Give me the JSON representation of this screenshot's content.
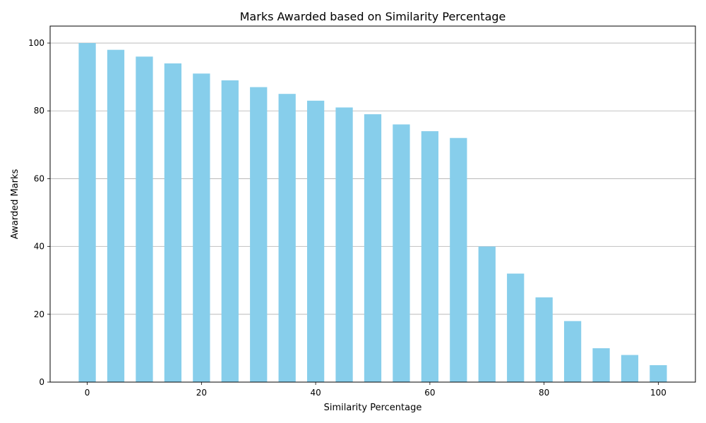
{
  "chart_data": {
    "type": "bar",
    "title": "Marks Awarded based on Similarity Percentage",
    "xlabel": "Similarity Percentage",
    "ylabel": "Awarded Marks",
    "x": [
      0,
      5,
      10,
      15,
      20,
      25,
      30,
      35,
      40,
      45,
      50,
      55,
      60,
      65,
      70,
      75,
      80,
      85,
      90,
      95,
      100
    ],
    "values": [
      100,
      98,
      96,
      94,
      91,
      89,
      87,
      85,
      83,
      81,
      79,
      76,
      74,
      72,
      40,
      32,
      25,
      18,
      10,
      8,
      5
    ],
    "bar_width": 3,
    "xlim": [
      -6.5,
      106.5
    ],
    "ylim": [
      0,
      105
    ],
    "xticks": [
      0,
      20,
      40,
      60,
      80,
      100
    ],
    "yticks": [
      0,
      20,
      40,
      60,
      80,
      100
    ],
    "grid": "y-major",
    "legend": "none",
    "colors": {
      "bar": "#87CEEB",
      "grid": "#b0b0b0",
      "axes": "#000000"
    }
  }
}
